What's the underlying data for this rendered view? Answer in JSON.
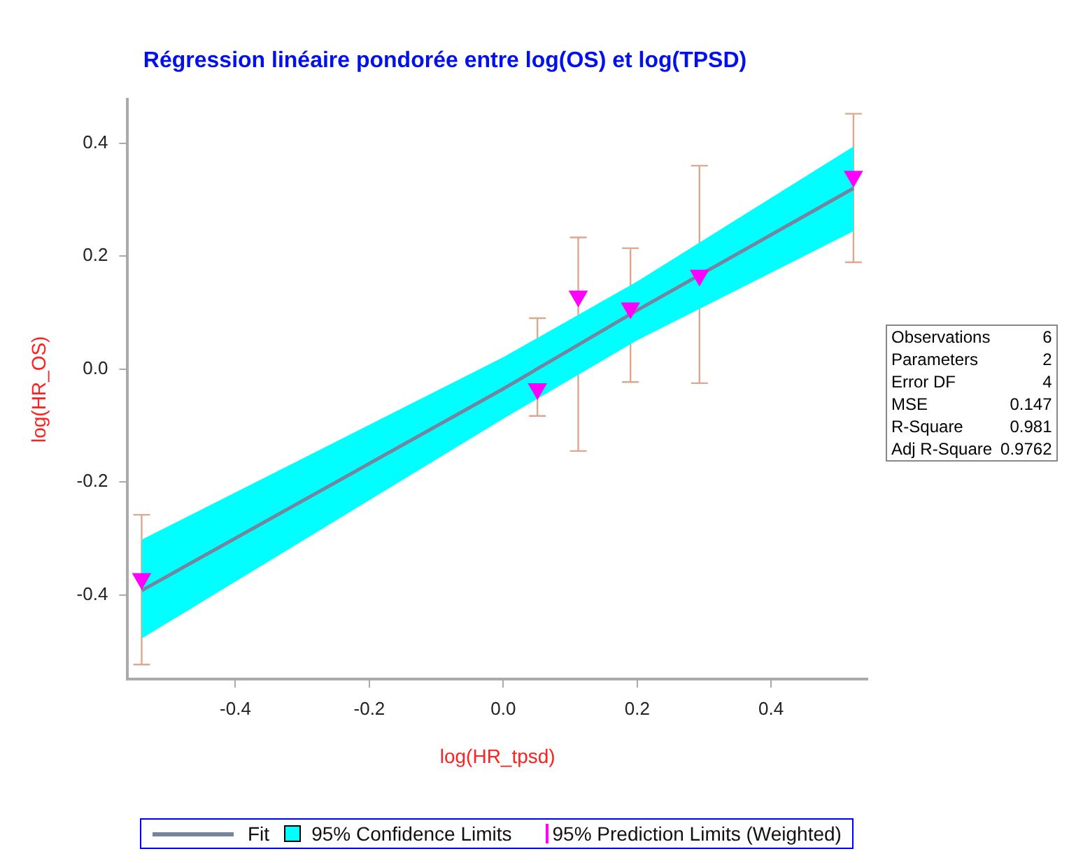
{
  "chart_data": {
    "type": "scatter",
    "title": "Régression linéaire pondorée entre log(OS) et log(TPSD)",
    "xlabel": "log(HR_tpsd)",
    "ylabel": "log(HR_OS)",
    "xlim": [
      -0.561,
      0.544
    ],
    "xticks": [
      -0.4,
      -0.2,
      {
        "value": 0,
        "label": "0.0"
      },
      0.2,
      0.4
    ],
    "ylim": [
      -0.549,
      0.477
    ],
    "yticks": [
      -0.4,
      -0.2,
      {
        "value": 0,
        "label": "0.0"
      },
      0.2,
      0.4
    ],
    "grid": false,
    "legend": "bottom",
    "annotations": [
      "95% Confidence Limits",
      "Observations",
      "6",
      "Parameters",
      "2",
      "Error DF",
      "4",
      "MSE",
      "0.147",
      "R-Square",
      "0.981",
      "Adj R-Square",
      "0.9762"
    ],
    "series": [
      {
        "name": "Fit",
        "type": "line",
        "color": "#7585a0",
        "x": [
          -0.54,
          0,
          0.2,
          0.523
        ],
        "values": [
          -0.392,
          -0.035,
          0.104,
          0.32
        ],
        "lower": [
          -0.477,
          -0.088,
          0.051,
          0.244
        ],
        "upper": [
          -0.302,
          0.021,
          0.155,
          0.394
        ]
      },
      {
        "name": "95% Prediction Limits (Weighted)",
        "marker": "triangle",
        "color": "#ff00ff",
        "x": [
          -0.54,
          0.051,
          0.112,
          0.19,
          0.293,
          0.523
        ],
        "values": [
          -0.371,
          -0.035,
          0.129,
          0.108,
          0.166,
          0.341
        ],
        "errors": [
          [
            -0.523,
            -0.258
          ],
          [
            -0.083,
            0.09
          ],
          [
            -0.145,
            0.233
          ],
          [
            -0.023,
            0.214
          ],
          [
            -0.025,
            0.36
          ],
          [
            0.189,
            0.452
          ]
        ]
      }
    ]
  }
}
